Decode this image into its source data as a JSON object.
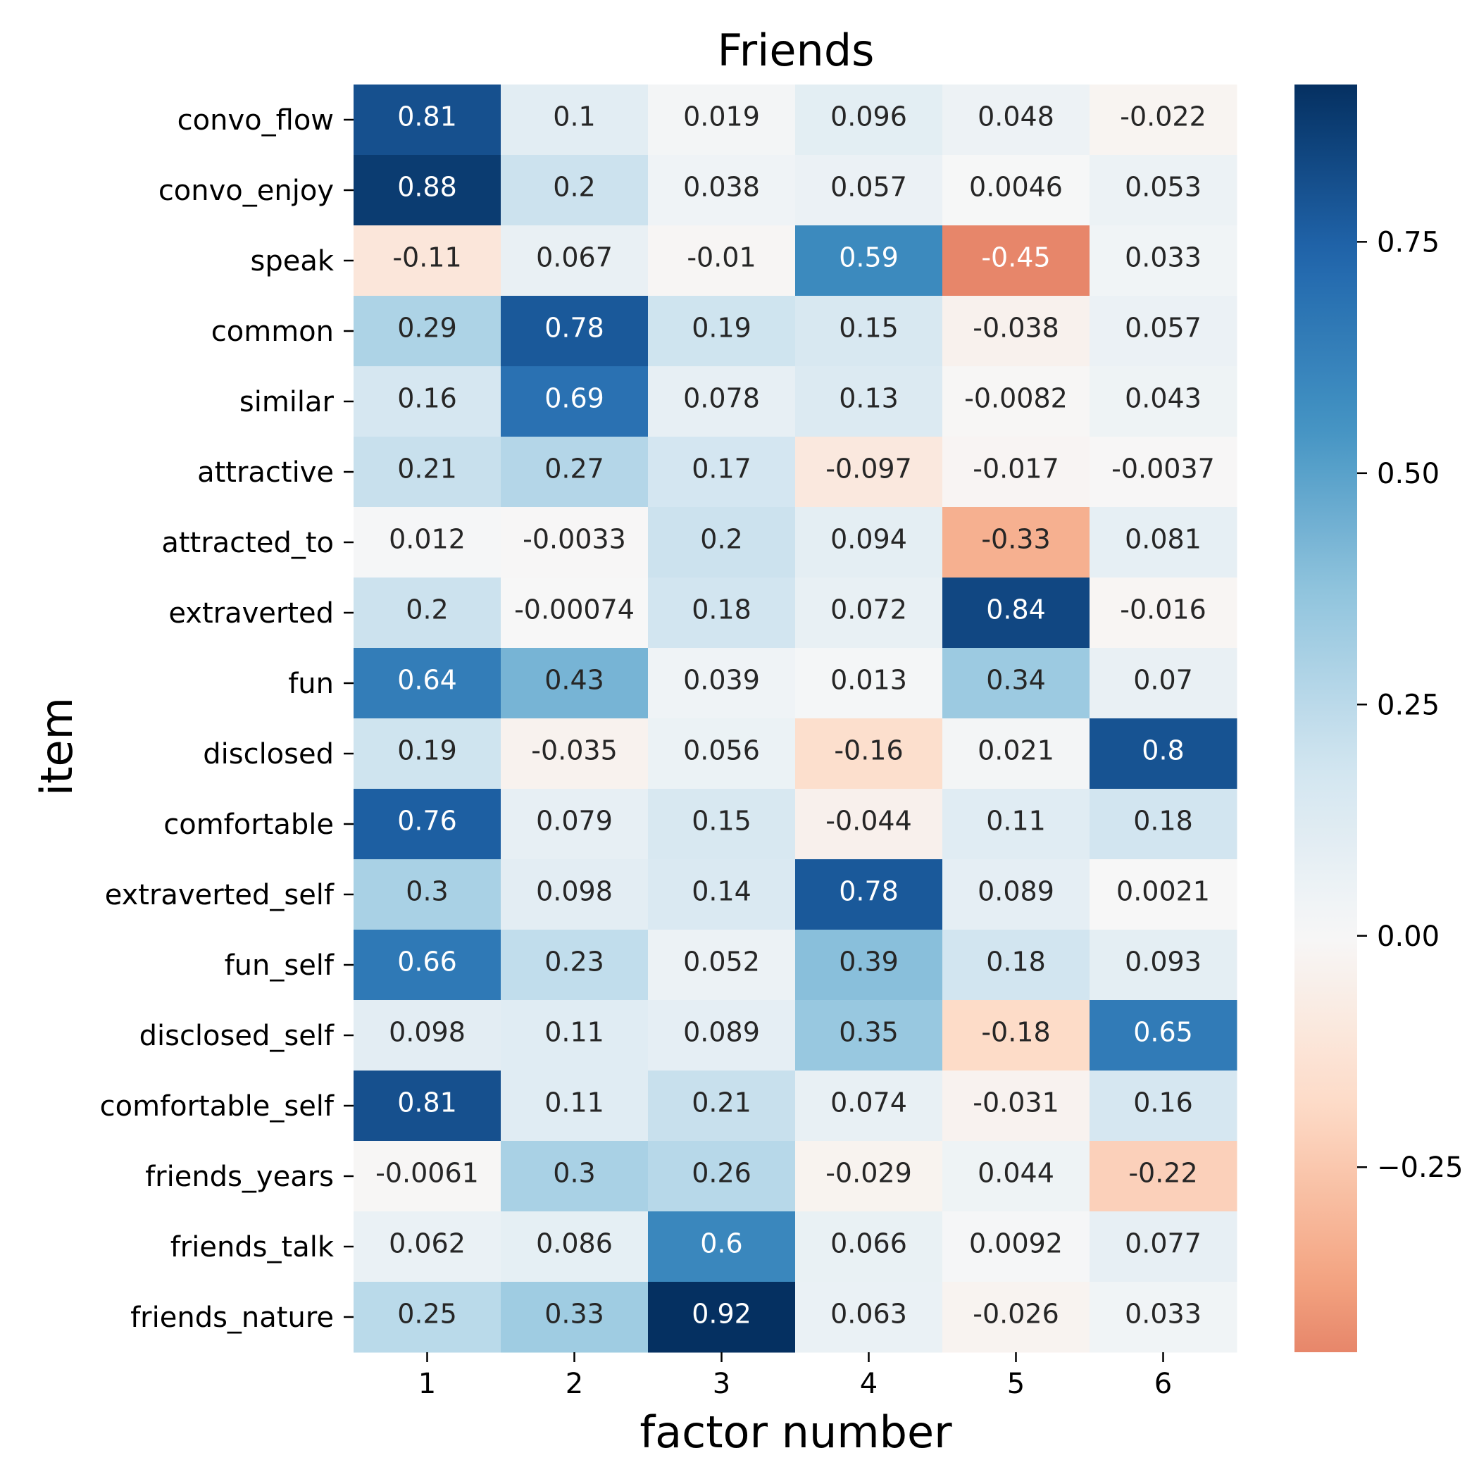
{
  "chart_data": {
    "type": "heatmap",
    "title": "Friends",
    "xlabel": "factor number",
    "ylabel": "item",
    "columns": [
      "1",
      "2",
      "3",
      "4",
      "5",
      "6"
    ],
    "rows": [
      "convo_flow",
      "convo_enjoy",
      "speak",
      "common",
      "similar",
      "attractive",
      "attracted_to",
      "extraverted",
      "fun",
      "disclosed",
      "comfortable",
      "extraverted_self",
      "fun_self",
      "disclosed_self",
      "comfortable_self",
      "friends_years",
      "friends_talk",
      "friends_nature"
    ],
    "values": [
      [
        0.81,
        0.1,
        0.019,
        0.096,
        0.048,
        -0.022
      ],
      [
        0.88,
        0.2,
        0.038,
        0.057,
        0.0046,
        0.053
      ],
      [
        -0.11,
        0.067,
        -0.01,
        0.59,
        -0.45,
        0.033
      ],
      [
        0.29,
        0.78,
        0.19,
        0.15,
        -0.038,
        0.057
      ],
      [
        0.16,
        0.69,
        0.078,
        0.13,
        -0.0082,
        0.043
      ],
      [
        0.21,
        0.27,
        0.17,
        -0.097,
        -0.017,
        -0.0037
      ],
      [
        0.012,
        -0.0033,
        0.2,
        0.094,
        -0.33,
        0.081
      ],
      [
        0.2,
        -0.00074,
        0.18,
        0.072,
        0.84,
        -0.016
      ],
      [
        0.64,
        0.43,
        0.039,
        0.013,
        0.34,
        0.07
      ],
      [
        0.19,
        -0.035,
        0.056,
        -0.16,
        0.021,
        0.8
      ],
      [
        0.76,
        0.079,
        0.15,
        -0.044,
        0.11,
        0.18
      ],
      [
        0.3,
        0.098,
        0.14,
        0.78,
        0.089,
        0.0021
      ],
      [
        0.66,
        0.23,
        0.052,
        0.39,
        0.18,
        0.093
      ],
      [
        0.098,
        0.11,
        0.089,
        0.35,
        -0.18,
        0.65
      ],
      [
        0.81,
        0.11,
        0.21,
        0.074,
        -0.031,
        0.16
      ],
      [
        -0.0061,
        0.3,
        0.26,
        -0.029,
        0.044,
        -0.22
      ],
      [
        0.062,
        0.086,
        0.6,
        0.066,
        0.0092,
        0.077
      ],
      [
        0.25,
        0.33,
        0.92,
        0.063,
        -0.026,
        0.033
      ]
    ],
    "cell_labels": [
      [
        "0.81",
        "0.1",
        "0.019",
        "0.096",
        "0.048",
        "-0.022"
      ],
      [
        "0.88",
        "0.2",
        "0.038",
        "0.057",
        "0.0046",
        "0.053"
      ],
      [
        "-0.11",
        "0.067",
        "-0.01",
        "0.59",
        "-0.45",
        "0.033"
      ],
      [
        "0.29",
        "0.78",
        "0.19",
        "0.15",
        "-0.038",
        "0.057"
      ],
      [
        "0.16",
        "0.69",
        "0.078",
        "0.13",
        "-0.0082",
        "0.043"
      ],
      [
        "0.21",
        "0.27",
        "0.17",
        "-0.097",
        "-0.017",
        "-0.0037"
      ],
      [
        "0.012",
        "-0.0033",
        "0.2",
        "0.094",
        "-0.33",
        "0.081"
      ],
      [
        "0.2",
        "-0.00074",
        "0.18",
        "0.072",
        "0.84",
        "-0.016"
      ],
      [
        "0.64",
        "0.43",
        "0.039",
        "0.013",
        "0.34",
        "0.07"
      ],
      [
        "0.19",
        "-0.035",
        "0.056",
        "-0.16",
        "0.021",
        "0.8"
      ],
      [
        "0.76",
        "0.079",
        "0.15",
        "-0.044",
        "0.11",
        "0.18"
      ],
      [
        "0.3",
        "0.098",
        "0.14",
        "0.78",
        "0.089",
        "0.0021"
      ],
      [
        "0.66",
        "0.23",
        "0.052",
        "0.39",
        "0.18",
        "0.093"
      ],
      [
        "0.098",
        "0.11",
        "0.089",
        "0.35",
        "-0.18",
        "0.65"
      ],
      [
        "0.81",
        "0.11",
        "0.21",
        "0.074",
        "-0.031",
        "0.16"
      ],
      [
        "-0.0061",
        "0.3",
        "0.26",
        "-0.029",
        "0.044",
        "-0.22"
      ],
      [
        "0.062",
        "0.086",
        "0.6",
        "0.066",
        "0.0092",
        "0.077"
      ],
      [
        "0.25",
        "0.33",
        "0.92",
        "0.063",
        "-0.026",
        "0.033"
      ]
    ],
    "colorbar": {
      "vmin": -0.45,
      "vmax": 0.92,
      "center": 0,
      "ticks": [
        0.75,
        0.5,
        0.25,
        0.0,
        -0.25
      ],
      "tick_labels": [
        "0.75",
        "0.50",
        "0.25",
        "0.00",
        "−0.25"
      ],
      "cmap": "RdBu (centered at 0)",
      "negative_color_stops": [
        "#67001f",
        "#b2182b",
        "#d6604d",
        "#f4a582",
        "#fddbc7",
        "#f7f7f7"
      ],
      "positive_color_stops": [
        "#f7f7f7",
        "#d1e5f0",
        "#92c5de",
        "#4393c3",
        "#2166ac",
        "#053061"
      ],
      "placement": "right"
    },
    "text_light_color": "#ffffff",
    "text_dark_color": "#262626"
  }
}
